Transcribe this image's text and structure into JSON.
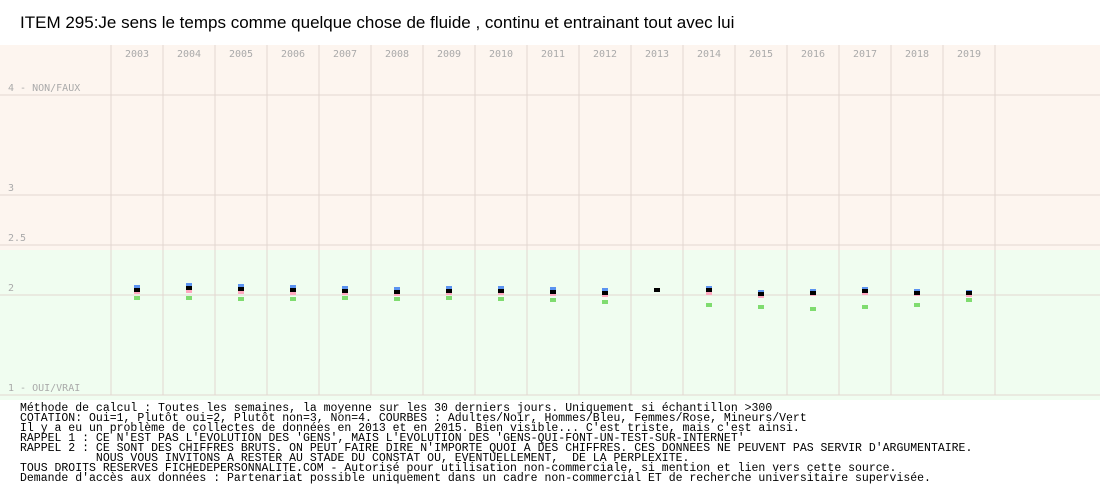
{
  "chart_data": {
    "type": "scatter",
    "title": "ITEM 295:Je sens le temps comme quelque chose de fluide , continu et entrainant tout avec lui",
    "categories": [
      "2003",
      "2004",
      "2005",
      "2006",
      "2007",
      "2008",
      "2009",
      "2010",
      "2011",
      "2012",
      "2013",
      "2014",
      "2015",
      "2016",
      "2017",
      "2018",
      "2019"
    ],
    "ylim": [
      1,
      4.5
    ],
    "yticks": [
      {
        "value": 1,
        "label": "1 - OUI/VRAI"
      },
      2,
      2.5,
      3,
      {
        "value": 4,
        "label": "4 - NON/FAUX"
      }
    ],
    "grid": true,
    "series": [
      {
        "color": "#7fdc6f",
        "values": [
          1.97,
          1.97,
          1.96,
          1.96,
          1.97,
          1.96,
          1.97,
          1.96,
          1.95,
          1.93,
          null,
          1.9,
          1.88,
          1.86,
          1.88,
          1.9,
          1.95
        ]
      },
      {
        "color": "#ffa8c0",
        "values": [
          2.03,
          2.04,
          2.03,
          2.02,
          2.02,
          2.01,
          2.02,
          2.02,
          2.01,
          2.0,
          null,
          2.02,
          1.99,
          2.01,
          2.02,
          2.01,
          2.0
        ]
      },
      {
        "color": "#5b93f0",
        "values": [
          2.08,
          2.1,
          2.09,
          2.08,
          2.07,
          2.06,
          2.07,
          2.07,
          2.06,
          2.05,
          null,
          2.07,
          2.03,
          2.04,
          2.06,
          2.04,
          2.03
        ]
      },
      {
        "color": "#000000",
        "values": [
          2.05,
          2.07,
          2.06,
          2.05,
          2.04,
          2.03,
          2.04,
          2.04,
          2.03,
          2.02,
          2.05,
          2.05,
          2.01,
          2.02,
          2.04,
          2.02,
          2.02
        ]
      }
    ],
    "notes": [
      "Méthode de calcul : Toutes les semaines, la moyenne sur les 30 derniers jours. Uniquement si échantillon >300",
      "COTATION: Oui=1, Plutôt oui=2, Plutôt non=3, Non=4. COURBES : Adultes/Noir, Hommes/Bleu, Femmes/Rose, Mineurs/Vert",
      "Il y a eu un problème de collectes de données en 2013 et en 2015. Bien visible... C'est triste, mais c'est ainsi.",
      "RAPPEL 1 : CE N'EST PAS L'EVOLUTION DES 'GENS', MAIS L'EVOLUTION DES 'GENS-QUI-FONT-UN-TEST-SUR-INTERNET'",
      "RAPPEL 2 : CE SONT DES CHIFFRES BRUTS. ON PEUT FAIRE DIRE N'IMPORTE QUOI A DES CHIFFRES. CES DONNEES NE PEUVENT PAS SERVIR D'ARGUMENTAIRE.",
      "           NOUS VOUS INVITONS A RESTER AU STADE DU CONSTAT OU, EVENTUELLEMENT,  DE LA PERPLEXITE.",
      "TOUS DROITS RESERVES FICHEDEPERSONNALITE.COM - Autorisé pour utilisation non-commerciale, si mention et lien vers cette source.",
      "Demande d'accès aux données : Partenariat possible uniquement dans un cadre non-commercial ET de recherche universitaire supervisée."
    ]
  }
}
